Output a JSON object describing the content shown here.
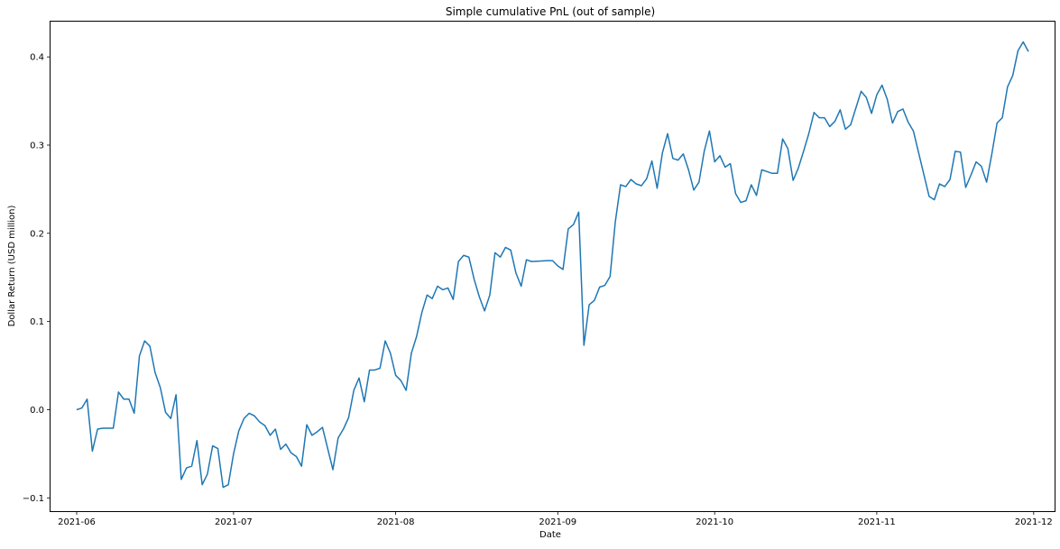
{
  "chart_data": {
    "type": "line",
    "title": "Simple cumulative PnL (out of sample)",
    "xlabel": "Date",
    "ylabel": "Dollar Return (USD million)",
    "x_ticks": [
      "2021-06",
      "2021-07",
      "2021-08",
      "2021-09",
      "2021-10",
      "2021-11",
      "2021-12"
    ],
    "y_ticks": [
      -0.1,
      0.0,
      0.1,
      0.2,
      0.3,
      0.4
    ],
    "y_tick_labels": [
      "−0.1",
      "0.0",
      "0.1",
      "0.2",
      "0.3",
      "0.4"
    ],
    "xlim": [
      "2021-05-27",
      "2021-12-05"
    ],
    "ylim": [
      -0.115,
      0.44
    ],
    "grid": false,
    "line_color": "#1f77b4",
    "series": [
      {
        "x": [
          "2021-06-01",
          "2021-06-02",
          "2021-06-03",
          "2021-06-04",
          "2021-06-05",
          "2021-06-06",
          "2021-06-07",
          "2021-06-08",
          "2021-06-09",
          "2021-06-10",
          "2021-06-11",
          "2021-06-12",
          "2021-06-13",
          "2021-06-14",
          "2021-06-15",
          "2021-06-16",
          "2021-06-17",
          "2021-06-18",
          "2021-06-19",
          "2021-06-20",
          "2021-06-21",
          "2021-06-22",
          "2021-06-23",
          "2021-06-24",
          "2021-06-25",
          "2021-06-26",
          "2021-06-27",
          "2021-06-28",
          "2021-06-29",
          "2021-06-30",
          "2021-07-01",
          "2021-07-02",
          "2021-07-03",
          "2021-07-04",
          "2021-07-05",
          "2021-07-06",
          "2021-07-07",
          "2021-07-08",
          "2021-07-09",
          "2021-07-10",
          "2021-07-11",
          "2021-07-12",
          "2021-07-13",
          "2021-07-14",
          "2021-07-15",
          "2021-07-16",
          "2021-07-17",
          "2021-07-18",
          "2021-07-19",
          "2021-07-20",
          "2021-07-21",
          "2021-07-22",
          "2021-07-23",
          "2021-07-24",
          "2021-07-25",
          "2021-07-26",
          "2021-07-27",
          "2021-07-28",
          "2021-07-29",
          "2021-07-30",
          "2021-07-31",
          "2021-08-01",
          "2021-08-02",
          "2021-08-03",
          "2021-08-04",
          "2021-08-05",
          "2021-08-06",
          "2021-08-07",
          "2021-08-08",
          "2021-08-09",
          "2021-08-10",
          "2021-08-11",
          "2021-08-12",
          "2021-08-13",
          "2021-08-14",
          "2021-08-15",
          "2021-08-16",
          "2021-08-17",
          "2021-08-18",
          "2021-08-19",
          "2021-08-20",
          "2021-08-21",
          "2021-08-22",
          "2021-08-23",
          "2021-08-24",
          "2021-08-25",
          "2021-08-26",
          "2021-08-27",
          "2021-08-30",
          "2021-08-31",
          "2021-09-01",
          "2021-09-02",
          "2021-09-03",
          "2021-09-04",
          "2021-09-05",
          "2021-09-06",
          "2021-09-07",
          "2021-09-08",
          "2021-09-09",
          "2021-09-10",
          "2021-09-11",
          "2021-09-12",
          "2021-09-13",
          "2021-09-14",
          "2021-09-15",
          "2021-09-16",
          "2021-09-17",
          "2021-09-18",
          "2021-09-19",
          "2021-09-20",
          "2021-09-21",
          "2021-09-22",
          "2021-09-23",
          "2021-09-24",
          "2021-09-25",
          "2021-09-26",
          "2021-09-27",
          "2021-09-28",
          "2021-09-29",
          "2021-09-30",
          "2021-10-01",
          "2021-10-02",
          "2021-10-03",
          "2021-10-04",
          "2021-10-05",
          "2021-10-06",
          "2021-10-07",
          "2021-10-08",
          "2021-10-09",
          "2021-10-10",
          "2021-10-11",
          "2021-10-12",
          "2021-10-13",
          "2021-10-14",
          "2021-10-15",
          "2021-10-16",
          "2021-10-17",
          "2021-10-18",
          "2021-10-19",
          "2021-10-20",
          "2021-10-21",
          "2021-10-22",
          "2021-10-23",
          "2021-10-24",
          "2021-10-25",
          "2021-10-26",
          "2021-10-27",
          "2021-10-28",
          "2021-10-29",
          "2021-10-30",
          "2021-10-31",
          "2021-11-01",
          "2021-11-02",
          "2021-11-03",
          "2021-11-04",
          "2021-11-05",
          "2021-11-06",
          "2021-11-07",
          "2021-11-08",
          "2021-11-11",
          "2021-11-12",
          "2021-11-13",
          "2021-11-14",
          "2021-11-15",
          "2021-11-16",
          "2021-11-17",
          "2021-11-18",
          "2021-11-19",
          "2021-11-20",
          "2021-11-21",
          "2021-11-22",
          "2021-11-23",
          "2021-11-24",
          "2021-11-25",
          "2021-11-26",
          "2021-11-27",
          "2021-11-28",
          "2021-11-29",
          "2021-11-30"
        ],
        "y": [
          0.0,
          0.002,
          0.012,
          -0.047,
          -0.022,
          -0.021,
          -0.021,
          -0.021,
          0.02,
          0.012,
          0.012,
          -0.004,
          0.061,
          0.078,
          0.072,
          0.042,
          0.025,
          -0.003,
          -0.01,
          0.017,
          -0.079,
          -0.066,
          -0.064,
          -0.035,
          -0.085,
          -0.073,
          -0.041,
          -0.044,
          -0.088,
          -0.085,
          -0.05,
          -0.024,
          -0.01,
          -0.004,
          -0.007,
          -0.014,
          -0.018,
          -0.029,
          -0.022,
          -0.045,
          -0.039,
          -0.049,
          -0.053,
          -0.064,
          -0.017,
          -0.029,
          -0.025,
          -0.02,
          -0.044,
          -0.068,
          -0.032,
          -0.022,
          -0.009,
          0.022,
          0.036,
          0.009,
          0.045,
          0.045,
          0.047,
          0.078,
          0.064,
          0.039,
          0.033,
          0.022,
          0.064,
          0.083,
          0.11,
          0.13,
          0.126,
          0.14,
          0.136,
          0.138,
          0.125,
          0.168,
          0.175,
          0.173,
          0.148,
          0.128,
          0.112,
          0.13,
          0.178,
          0.173,
          0.184,
          0.181,
          0.155,
          0.14,
          0.17,
          0.168,
          0.169,
          0.169,
          0.163,
          0.159,
          0.205,
          0.21,
          0.224,
          0.073,
          0.119,
          0.124,
          0.139,
          0.141,
          0.151,
          0.213,
          0.255,
          0.253,
          0.261,
          0.256,
          0.254,
          0.262,
          0.282,
          0.251,
          0.291,
          0.313,
          0.285,
          0.283,
          0.29,
          0.272,
          0.249,
          0.258,
          0.293,
          0.316,
          0.281,
          0.288,
          0.275,
          0.279,
          0.245,
          0.235,
          0.237,
          0.255,
          0.243,
          0.272,
          0.27,
          0.268,
          0.268,
          0.307,
          0.296,
          0.26,
          0.274,
          0.293,
          0.313,
          0.337,
          0.331,
          0.331,
          0.321,
          0.327,
          0.34,
          0.318,
          0.323,
          0.342,
          0.361,
          0.354,
          0.336,
          0.357,
          0.368,
          0.352,
          0.325,
          0.338,
          0.341,
          0.326,
          0.316,
          0.242,
          0.238,
          0.256,
          0.253,
          0.261,
          0.293,
          0.292,
          0.252,
          0.266,
          0.281,
          0.276,
          0.258,
          0.29,
          0.325,
          0.331,
          0.366,
          0.379,
          0.407,
          0.417,
          0.406
        ]
      }
    ]
  }
}
